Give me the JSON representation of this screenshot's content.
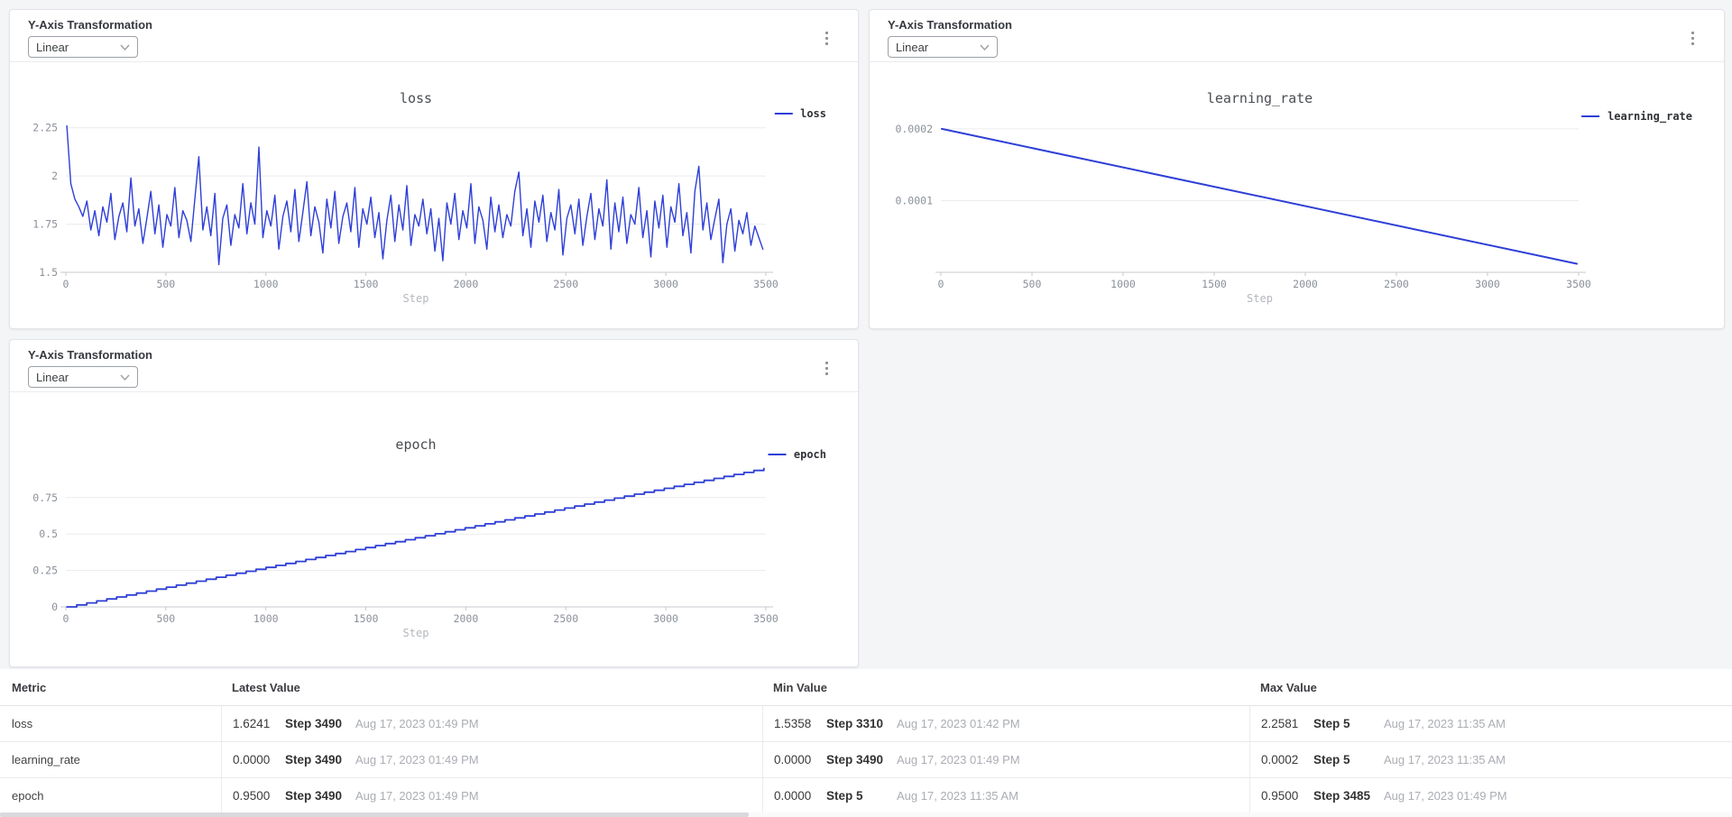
{
  "controls": {
    "yaxis_label": "Y-Axis Transformation",
    "dropdown_value": "Linear"
  },
  "colors": {
    "line": "#2e3fd6",
    "grid": "#ebecef",
    "axis": "#c7c9cf",
    "tick_text": "#8b909a",
    "title_text": "#4a4d52",
    "legend_text": "#2f3237",
    "step_label_text": "#b4b7bd"
  },
  "icons": {
    "kebab": "kebab-menu-icon (three vertical dots)",
    "chevron": "chevron-down-icon"
  },
  "chart_data": [
    {
      "metric": "loss",
      "type": "line",
      "title": "loss",
      "legend": "loss",
      "xlabel": "Step",
      "xlim": [
        0,
        3500
      ],
      "ylim": [
        1.5,
        2.3
      ],
      "x_ticks": [
        0,
        500,
        1000,
        1500,
        2000,
        2500,
        3000,
        3500
      ],
      "y_ticks": [
        {
          "v": 1.5,
          "t": "1.5"
        },
        {
          "v": 1.75,
          "t": "1.75"
        },
        {
          "v": 2,
          "t": "2"
        },
        {
          "v": 2.25,
          "t": "2.25"
        }
      ],
      "series": {
        "mode": "sampled",
        "x_start": 5,
        "x_step": 20,
        "values": [
          2.26,
          1.96,
          1.88,
          1.84,
          1.79,
          1.87,
          1.72,
          1.82,
          1.69,
          1.84,
          1.76,
          1.91,
          1.67,
          1.79,
          1.86,
          1.71,
          1.99,
          1.74,
          1.83,
          1.65,
          1.78,
          1.92,
          1.7,
          1.85,
          1.63,
          1.8,
          1.74,
          1.94,
          1.68,
          1.82,
          1.77,
          1.66,
          1.88,
          2.1,
          1.72,
          1.84,
          1.69,
          1.91,
          1.54,
          1.78,
          1.85,
          1.64,
          1.8,
          1.73,
          1.96,
          1.7,
          1.86,
          1.75,
          2.15,
          1.68,
          1.82,
          1.74,
          1.9,
          1.62,
          1.79,
          1.87,
          1.71,
          1.93,
          1.66,
          1.81,
          1.97,
          1.69,
          1.84,
          1.76,
          1.6,
          1.88,
          1.73,
          1.92,
          1.65,
          1.79,
          1.86,
          1.71,
          1.94,
          1.63,
          1.83,
          1.75,
          1.89,
          1.68,
          1.81,
          1.57,
          1.77,
          1.9,
          1.66,
          1.85,
          1.72,
          1.95,
          1.64,
          1.8,
          1.74,
          1.88,
          1.7,
          1.83,
          1.61,
          1.78,
          1.56,
          1.86,
          1.75,
          1.91,
          1.67,
          1.82,
          1.73,
          1.96,
          1.65,
          1.84,
          1.77,
          1.62,
          1.89,
          1.71,
          1.85,
          1.68,
          1.8,
          1.74,
          1.92,
          2.02,
          1.69,
          1.83,
          1.63,
          1.87,
          1.76,
          1.9,
          1.66,
          1.81,
          1.72,
          1.93,
          1.59,
          1.78,
          1.85,
          1.7,
          1.88,
          1.64,
          1.79,
          1.91,
          1.67,
          1.83,
          1.74,
          1.98,
          1.62,
          1.86,
          1.71,
          1.89,
          1.65,
          1.8,
          1.75,
          1.94,
          1.68,
          1.82,
          1.58,
          1.87,
          1.73,
          1.9,
          1.63,
          1.84,
          1.76,
          1.96,
          1.69,
          1.81,
          1.6,
          1.92,
          2.05,
          1.72,
          1.86,
          1.67,
          1.78,
          1.88,
          1.55,
          1.75,
          1.83,
          1.61,
          1.77,
          1.7,
          1.81,
          1.64,
          1.74,
          1.68,
          1.62
        ]
      }
    },
    {
      "metric": "learning_rate",
      "type": "line",
      "title": "learning_rate",
      "legend": "learning_rate",
      "xlabel": "Step",
      "xlim": [
        0,
        3500
      ],
      "ylim": [
        0,
        0.000215
      ],
      "x_ticks": [
        0,
        500,
        1000,
        1500,
        2000,
        2500,
        3000,
        3500
      ],
      "y_ticks": [
        {
          "v": 0.0001,
          "t": "0.0001"
        },
        {
          "v": 0.0002,
          "t": "0.0002"
        }
      ],
      "series": {
        "mode": "points",
        "points": [
          [
            5,
            0.0002
          ],
          [
            3490,
            1.2e-05
          ]
        ]
      }
    },
    {
      "metric": "epoch",
      "type": "line",
      "title": "epoch",
      "legend": "epoch",
      "xlabel": "Step",
      "xlim": [
        0,
        3500
      ],
      "ylim": [
        0,
        1.04
      ],
      "x_ticks": [
        0,
        500,
        1000,
        1500,
        2000,
        2500,
        3000,
        3500
      ],
      "y_ticks": [
        {
          "v": 0,
          "t": "0"
        },
        {
          "v": 0.25,
          "t": "0.25"
        },
        {
          "v": 0.5,
          "t": "0.5"
        },
        {
          "v": 0.75,
          "t": "0.75"
        }
      ],
      "series": {
        "mode": "staircase",
        "x0": 5,
        "x1": 3490,
        "y0": 0,
        "y1": 0.95,
        "steps": 70
      }
    }
  ],
  "table": {
    "columns": [
      "Metric",
      "Latest Value",
      "Min Value",
      "Max Value"
    ],
    "rows": [
      {
        "metric": "loss",
        "latest": {
          "value": "1.6241",
          "step": "Step 3490",
          "time": "Aug 17, 2023 01:49 PM"
        },
        "min": {
          "value": "1.5358",
          "step": "Step 3310",
          "time": "Aug 17, 2023 01:42 PM"
        },
        "max": {
          "value": "2.2581",
          "step": "Step 5",
          "time": "Aug 17, 2023 11:35 AM"
        }
      },
      {
        "metric": "learning_rate",
        "latest": {
          "value": "0.0000",
          "step": "Step 3490",
          "time": "Aug 17, 2023 01:49 PM"
        },
        "min": {
          "value": "0.0000",
          "step": "Step 3490",
          "time": "Aug 17, 2023 01:49 PM"
        },
        "max": {
          "value": "0.0002",
          "step": "Step 5",
          "time": "Aug 17, 2023 11:35 AM"
        }
      },
      {
        "metric": "epoch",
        "latest": {
          "value": "0.9500",
          "step": "Step 3490",
          "time": "Aug 17, 2023 01:49 PM"
        },
        "min": {
          "value": "0.0000",
          "step": "Step 5",
          "time": "Aug 17, 2023 11:35 AM"
        },
        "max": {
          "value": "0.9500",
          "step": "Step 3485",
          "time": "Aug 17, 2023 01:49 PM"
        }
      }
    ]
  }
}
